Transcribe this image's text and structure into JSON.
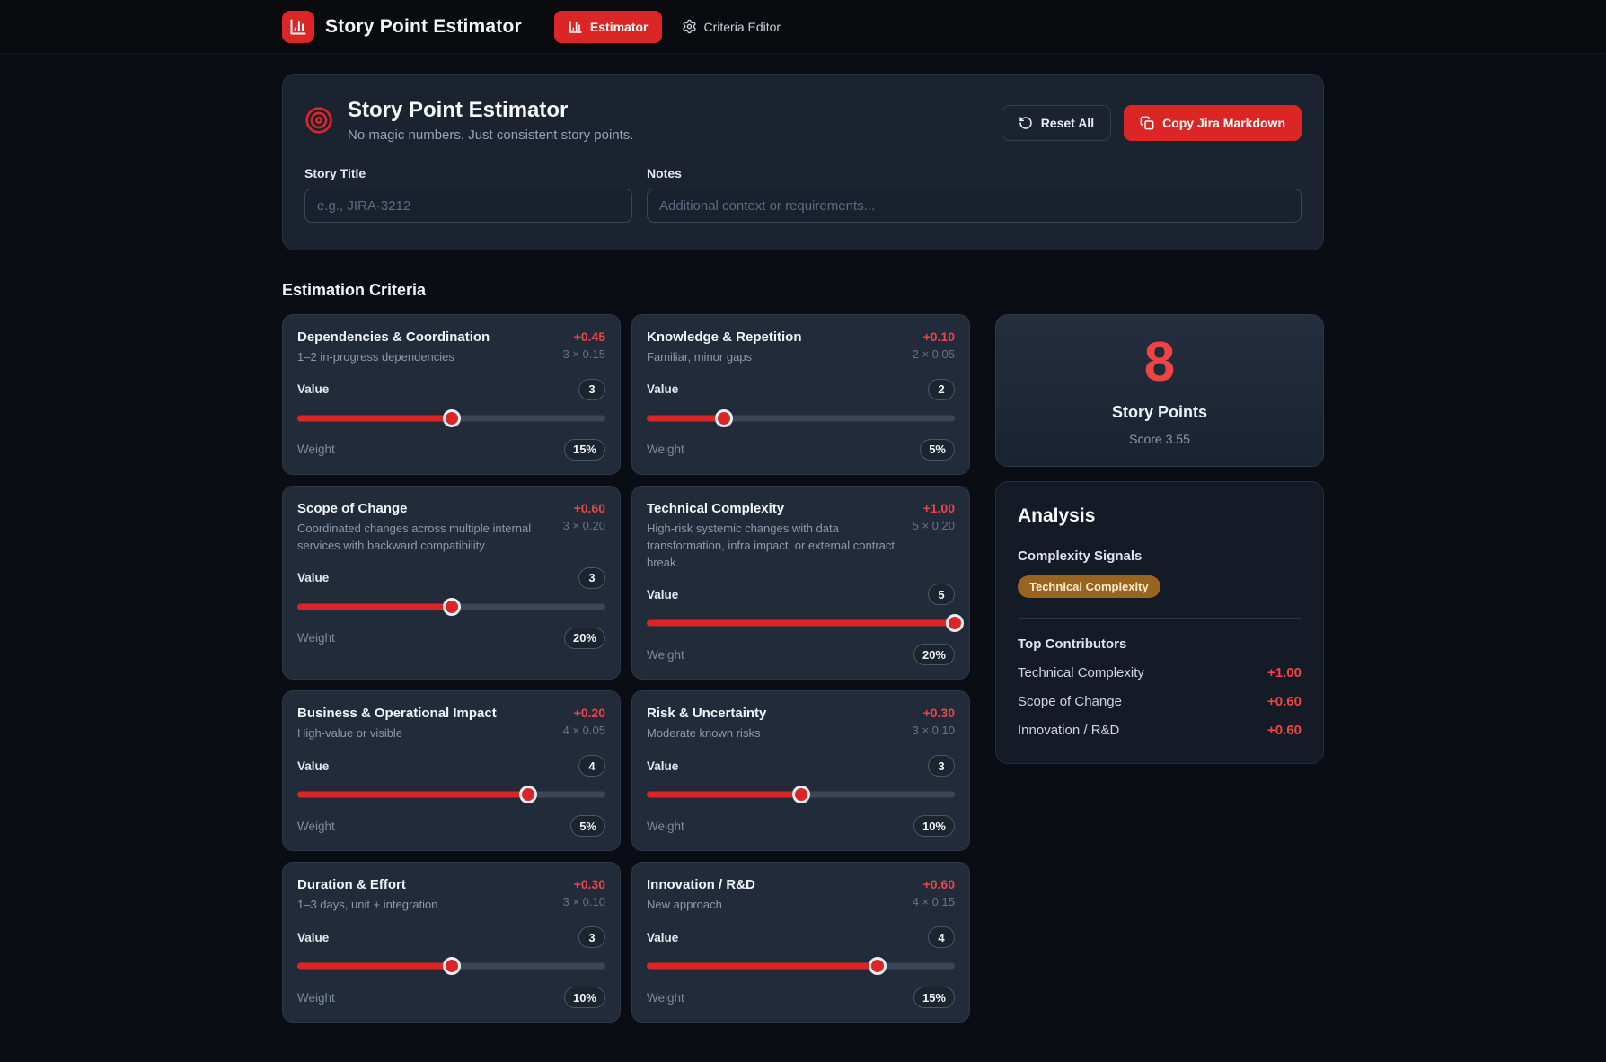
{
  "colors": {
    "accent": "#dc2626",
    "accent_text": "#ef4444",
    "page_bg": "#0a0d14",
    "card_bg": "#222b39",
    "signal_badge_bg": "#9a6420"
  },
  "nav": {
    "title": "Story Point Estimator",
    "items": [
      {
        "label": "Estimator",
        "icon": "bar-chart-icon",
        "active": true
      },
      {
        "label": "Criteria Editor",
        "icon": "gear-icon",
        "active": false
      }
    ]
  },
  "header": {
    "icon": "target-icon",
    "title": "Story Point Estimator",
    "subtitle": "No magic numbers. Just consistent story points.",
    "reset_label": "Reset All",
    "copy_label": "Copy Jira Markdown",
    "story_title": {
      "label": "Story Title",
      "placeholder": "e.g., JIRA-3212",
      "value": ""
    },
    "notes": {
      "label": "Notes",
      "placeholder": "Additional context or requirements...",
      "value": ""
    }
  },
  "criteria_section": {
    "heading": "Estimation Criteria",
    "value_label": "Value",
    "weight_label": "Weight",
    "slider_min": 1,
    "slider_max": 5,
    "items": [
      {
        "name": "Dependencies & Coordination",
        "description": "1–2 in-progress dependencies",
        "contribution": "+0.45",
        "formula": "3 × 0.15",
        "value": 3,
        "weight": "15%"
      },
      {
        "name": "Knowledge & Repetition",
        "description": "Familiar, minor gaps",
        "contribution": "+0.10",
        "formula": "2 × 0.05",
        "value": 2,
        "weight": "5%"
      },
      {
        "name": "Scope of Change",
        "description": "Coordinated changes across multiple internal services with backward compatibility.",
        "contribution": "+0.60",
        "formula": "3 × 0.20",
        "value": 3,
        "weight": "20%"
      },
      {
        "name": "Technical Complexity",
        "description": "High-risk systemic changes with data transformation, infra impact, or external contract break.",
        "contribution": "+1.00",
        "formula": "5 × 0.20",
        "value": 5,
        "weight": "20%"
      },
      {
        "name": "Business & Operational Impact",
        "description": "High-value or visible",
        "contribution": "+0.20",
        "formula": "4 × 0.05",
        "value": 4,
        "weight": "5%"
      },
      {
        "name": "Risk & Uncertainty",
        "description": "Moderate known risks",
        "contribution": "+0.30",
        "formula": "3 × 0.10",
        "value": 3,
        "weight": "10%"
      },
      {
        "name": "Duration & Effort",
        "description": "1–3 days, unit + integration",
        "contribution": "+0.30",
        "formula": "3 × 0.10",
        "value": 3,
        "weight": "10%"
      },
      {
        "name": "Innovation / R&D",
        "description": "New approach",
        "contribution": "+0.60",
        "formula": "4 × 0.15",
        "value": 4,
        "weight": "15%"
      }
    ]
  },
  "result": {
    "points": "8",
    "label": "Story Points",
    "score": "Score 3.55"
  },
  "analysis": {
    "title": "Analysis",
    "signals_label": "Complexity Signals",
    "signals": [
      "Technical Complexity"
    ],
    "contributors_label": "Top Contributors",
    "contributors": [
      {
        "name": "Technical Complexity",
        "value": "+1.00"
      },
      {
        "name": "Scope of Change",
        "value": "+0.60"
      },
      {
        "name": "Innovation / R&D",
        "value": "+0.60"
      }
    ]
  }
}
